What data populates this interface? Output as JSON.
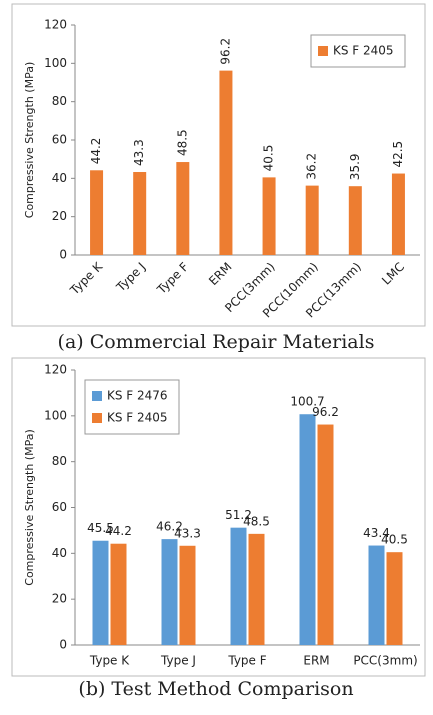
{
  "chart_data": [
    {
      "type": "bar",
      "caption": "(a) Commercial Repair Materials",
      "y_label": "Compressive Strength (MPa)",
      "categories": [
        "Type K",
        "Type J",
        "Type F",
        "ERM",
        "PCC(3mm)",
        "PCC(10mm)",
        "PCC(13mm)",
        "LMC"
      ],
      "series": [
        {
          "name": "KS F 2405",
          "color": "#ed7d31",
          "values": [
            44.2,
            43.3,
            48.5,
            96.2,
            40.5,
            36.2,
            35.9,
            42.5
          ]
        }
      ],
      "ylim": [
        0,
        120
      ],
      "yticks": [
        0,
        20,
        40,
        60,
        80,
        100,
        120
      ],
      "grid": false,
      "legend": "top-right"
    },
    {
      "type": "bar",
      "caption": "(b) Test Method Comparison",
      "y_label": "Compressive Strength (MPa)",
      "categories": [
        "Type K",
        "Type J",
        "Type F",
        "ERM",
        "PCC(3mm)"
      ],
      "series": [
        {
          "name": "KS F 2476",
          "color": "#5b9bd5",
          "values": [
            45.5,
            46.2,
            51.2,
            100.7,
            43.4
          ]
        },
        {
          "name": "KS F 2405",
          "color": "#ed7d31",
          "values": [
            44.2,
            43.3,
            48.5,
            96.2,
            40.5
          ]
        }
      ],
      "ylim": [
        0,
        120
      ],
      "yticks": [
        0,
        20,
        40,
        60,
        80,
        100,
        120
      ],
      "grid": false,
      "legend": "top-left"
    }
  ]
}
